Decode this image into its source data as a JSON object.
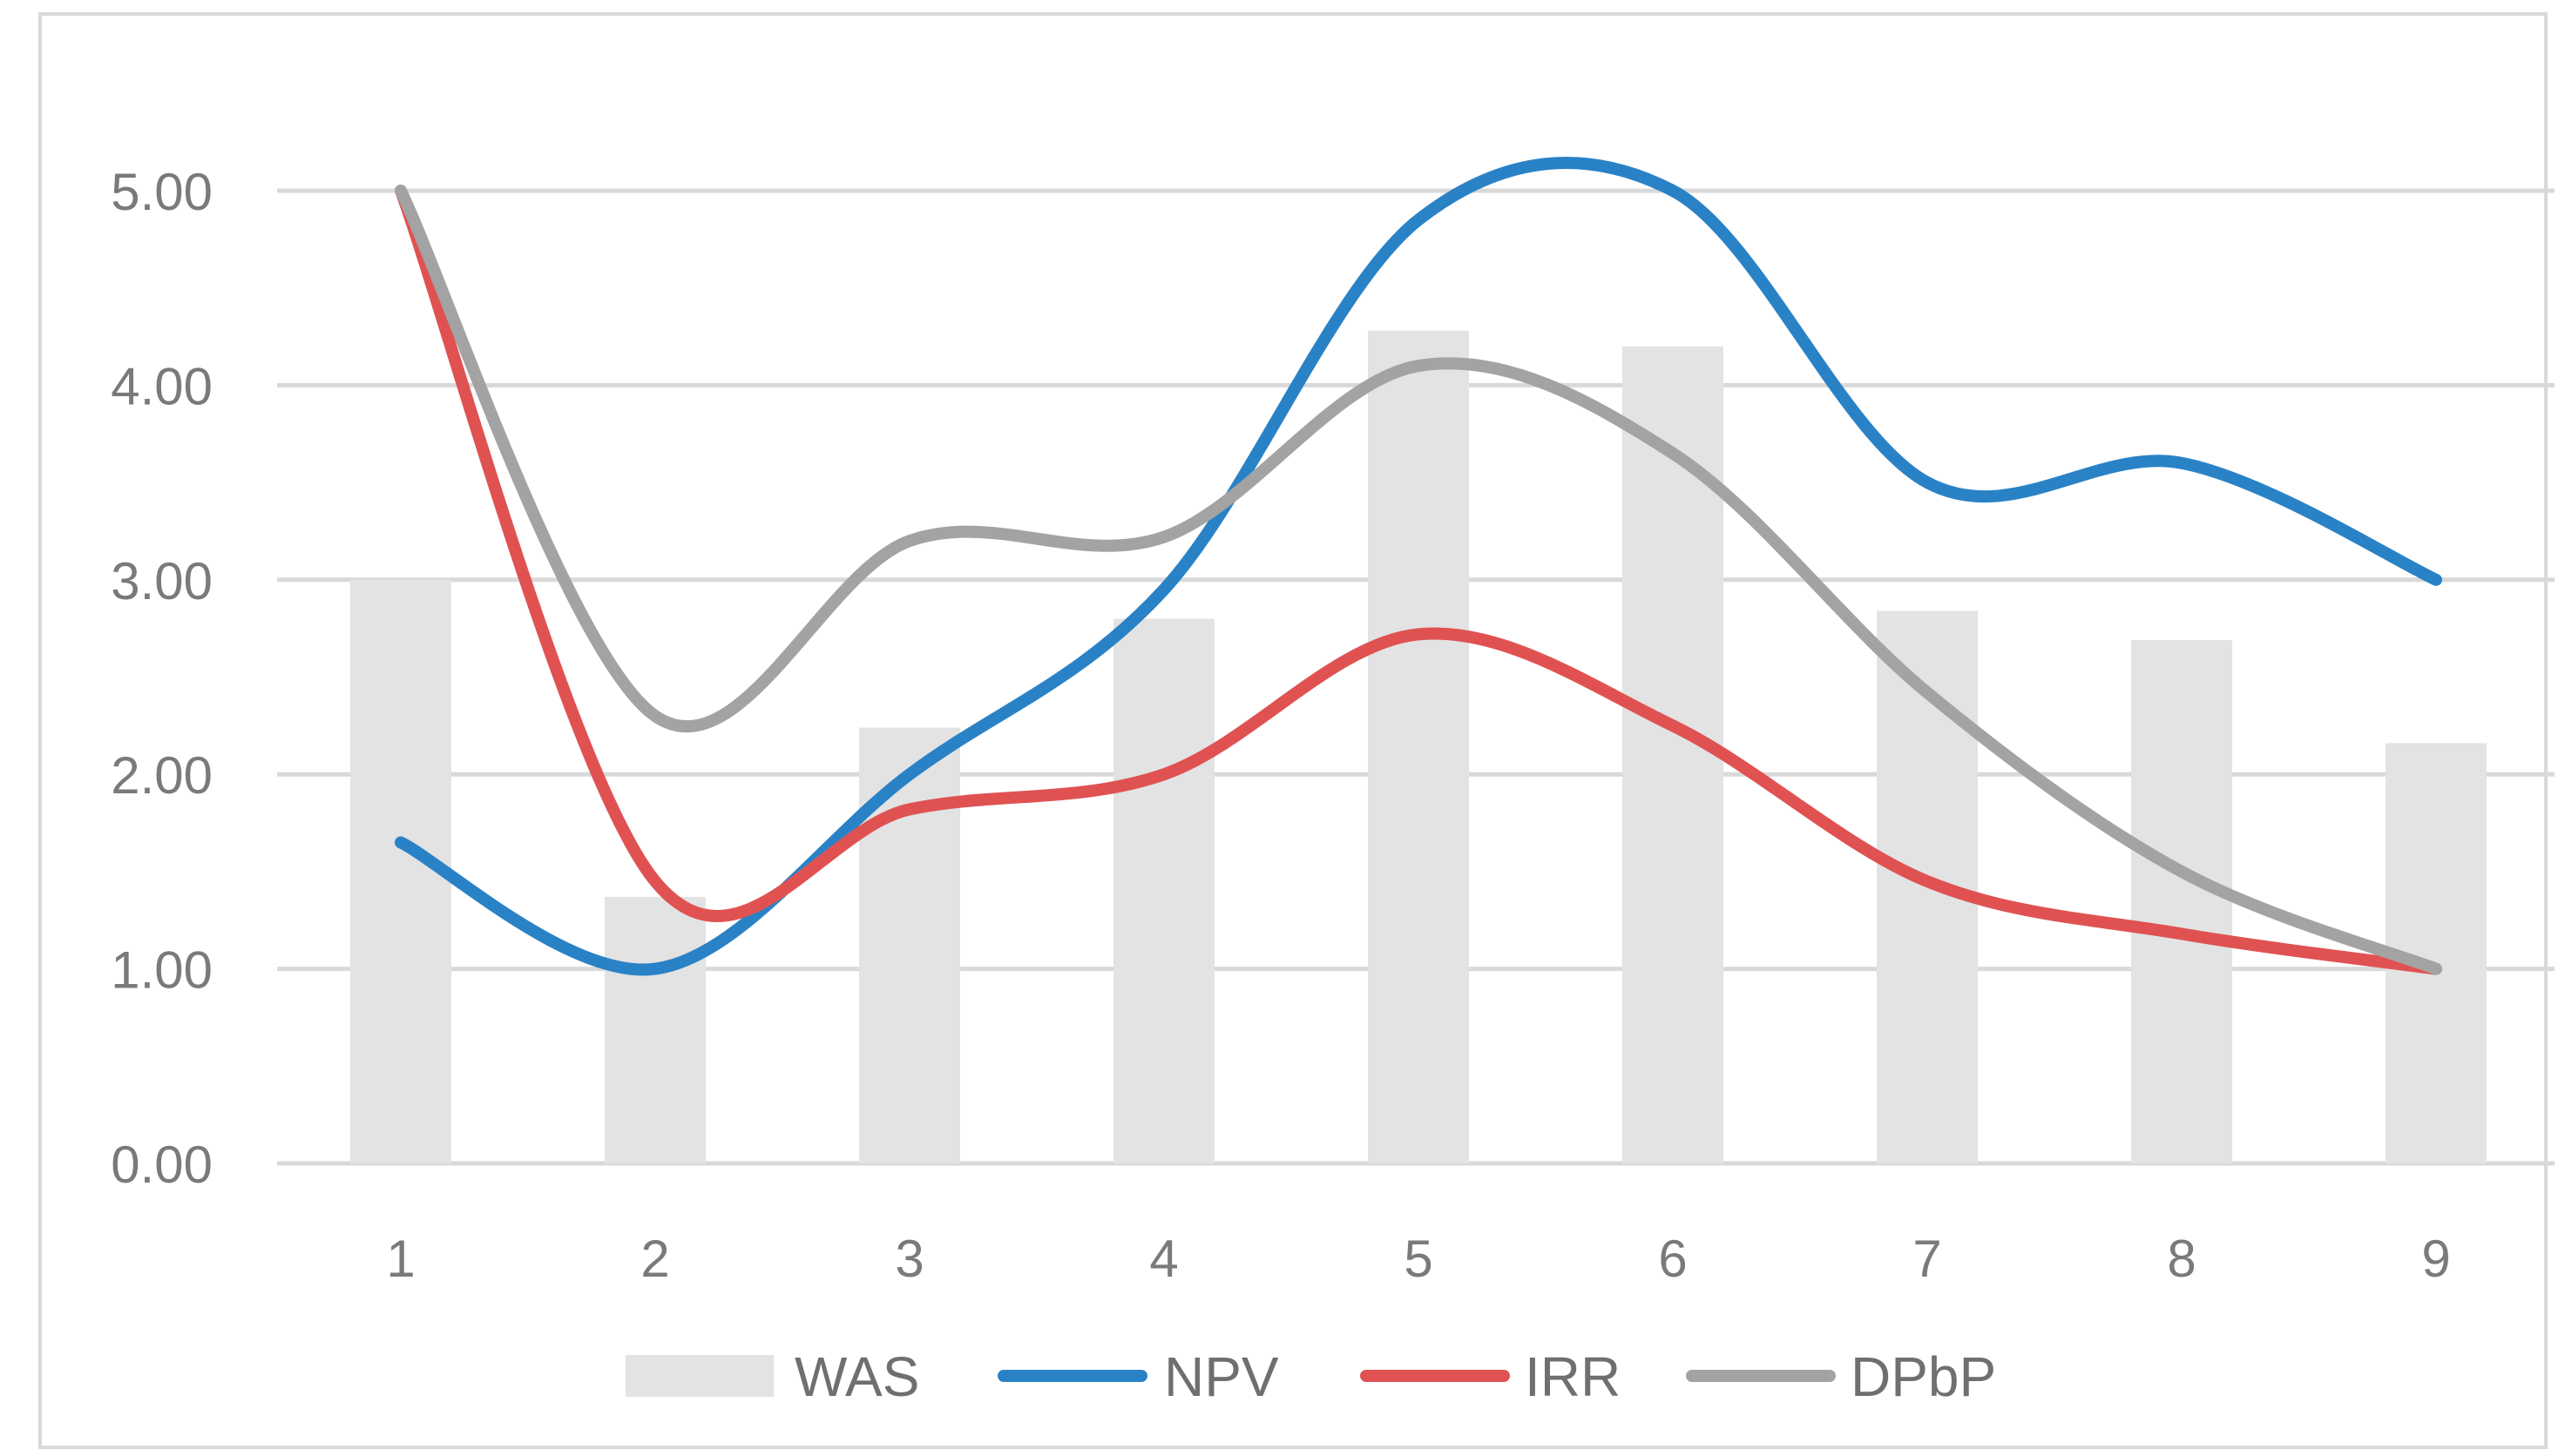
{
  "chart_data": {
    "type": "bar+line",
    "title": "",
    "xlabel": "",
    "ylabel": "",
    "categories": [
      "1",
      "2",
      "3",
      "4",
      "5",
      "6",
      "7",
      "8",
      "9"
    ],
    "ylim": [
      0,
      5
    ],
    "y_ticks": [
      "0.00",
      "1.00",
      "2.00",
      "3.00",
      "4.00",
      "5.00"
    ],
    "grid": true,
    "legend_position": "bottom",
    "series": [
      {
        "name": "WAS",
        "kind": "bar",
        "color": "#e3e3e3",
        "values": [
          3.0,
          1.37,
          2.24,
          2.8,
          4.28,
          4.2,
          2.84,
          2.69,
          2.16
        ]
      },
      {
        "name": "NPV",
        "kind": "line",
        "color": "#2a82c6",
        "values": [
          1.65,
          1.0,
          2.0,
          2.95,
          4.85,
          5.0,
          3.5,
          3.6,
          3.0
        ]
      },
      {
        "name": "IRR",
        "kind": "line",
        "color": "#e05252",
        "values": [
          5.0,
          1.45,
          1.82,
          2.0,
          2.72,
          2.25,
          1.45,
          1.18,
          1.0
        ]
      },
      {
        "name": "DPbP",
        "kind": "line",
        "color": "#a3a3a3",
        "values": [
          5.0,
          2.3,
          3.2,
          3.22,
          4.1,
          3.65,
          2.42,
          1.5,
          1.0
        ]
      }
    ]
  }
}
